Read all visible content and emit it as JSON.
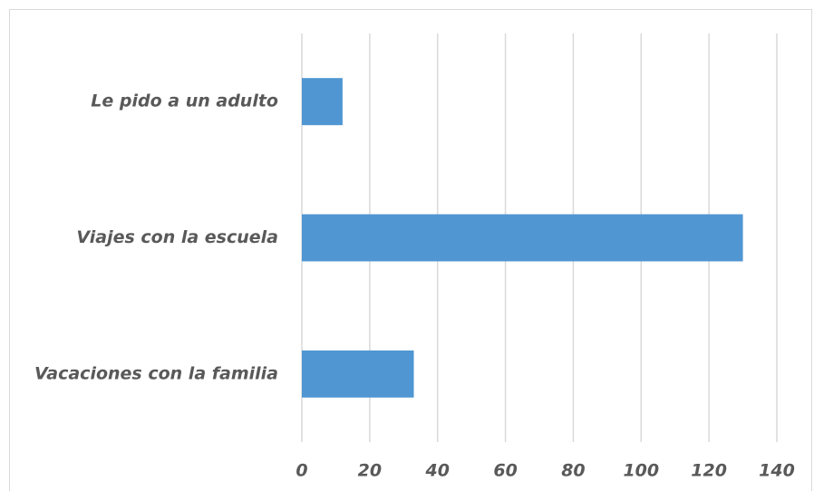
{
  "chart_data": {
    "type": "bar",
    "orientation": "horizontal",
    "categories": [
      "Le pido a un adulto",
      "Viajes con la escuela",
      "Vacaciones con la familia"
    ],
    "values": [
      12,
      130,
      33
    ],
    "color": "#5096d2",
    "xlim": [
      0,
      140
    ],
    "xticks": [
      0,
      20,
      40,
      60,
      80,
      100,
      120,
      140
    ],
    "grid": true
  }
}
